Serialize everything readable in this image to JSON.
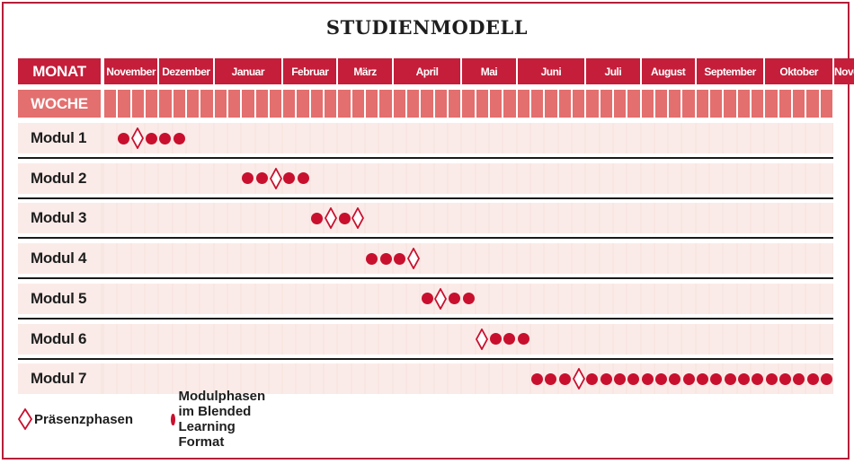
{
  "title": "STUDIENMODELL",
  "header": {
    "month_label": "MONAT",
    "week_label": "WOCHE",
    "months": [
      "November",
      "Dezember",
      "Januar",
      "Februar",
      "März",
      "April",
      "Mai",
      "Juni",
      "Juli",
      "August",
      "September",
      "Oktober",
      "November"
    ]
  },
  "colors": {
    "accent": "#c41e3a",
    "week_row": "#e36f6f",
    "cell": "#fbebe8",
    "dot": "#c8102e",
    "diamond_stroke": "#c8102e"
  },
  "modules": [
    {
      "label": "Modul 1",
      "marks": [
        {
          "week": 2,
          "type": "dot"
        },
        {
          "week": 3,
          "type": "diamond"
        },
        {
          "week": 4,
          "type": "dot"
        },
        {
          "week": 5,
          "type": "dot"
        },
        {
          "week": 6,
          "type": "dot"
        }
      ]
    },
    {
      "label": "Modul 2",
      "marks": [
        {
          "week": 11,
          "type": "dot"
        },
        {
          "week": 12,
          "type": "dot"
        },
        {
          "week": 13,
          "type": "diamond"
        },
        {
          "week": 14,
          "type": "dot"
        },
        {
          "week": 15,
          "type": "dot"
        }
      ]
    },
    {
      "label": "Modul 3",
      "marks": [
        {
          "week": 16,
          "type": "dot"
        },
        {
          "week": 17,
          "type": "diamond"
        },
        {
          "week": 18,
          "type": "dot"
        },
        {
          "week": 19,
          "type": "diamond"
        }
      ]
    },
    {
      "label": "Modul 4",
      "marks": [
        {
          "week": 20,
          "type": "dot"
        },
        {
          "week": 21,
          "type": "dot"
        },
        {
          "week": 22,
          "type": "dot"
        },
        {
          "week": 23,
          "type": "diamond"
        }
      ]
    },
    {
      "label": "Modul 5",
      "marks": [
        {
          "week": 24,
          "type": "dot"
        },
        {
          "week": 25,
          "type": "diamond"
        },
        {
          "week": 26,
          "type": "dot"
        },
        {
          "week": 27,
          "type": "dot"
        }
      ]
    },
    {
      "label": "Modul 6",
      "marks": [
        {
          "week": 28,
          "type": "diamond"
        },
        {
          "week": 29,
          "type": "dot"
        },
        {
          "week": 30,
          "type": "dot"
        },
        {
          "week": 31,
          "type": "dot"
        }
      ]
    },
    {
      "label": "Modul 7",
      "marks": [
        {
          "week": 32,
          "type": "dot"
        },
        {
          "week": 33,
          "type": "dot"
        },
        {
          "week": 34,
          "type": "dot"
        },
        {
          "week": 35,
          "type": "diamond"
        },
        {
          "week": 36,
          "type": "dot"
        },
        {
          "week": 37,
          "type": "dot"
        },
        {
          "week": 38,
          "type": "dot"
        },
        {
          "week": 39,
          "type": "dot"
        },
        {
          "week": 40,
          "type": "dot"
        },
        {
          "week": 41,
          "type": "dot"
        },
        {
          "week": 42,
          "type": "dot"
        },
        {
          "week": 43,
          "type": "dot"
        },
        {
          "week": 44,
          "type": "dot"
        },
        {
          "week": 45,
          "type": "dot"
        },
        {
          "week": 46,
          "type": "dot"
        },
        {
          "week": 47,
          "type": "dot"
        },
        {
          "week": 48,
          "type": "dot"
        },
        {
          "week": 49,
          "type": "dot"
        },
        {
          "week": 50,
          "type": "dot"
        },
        {
          "week": 51,
          "type": "dot"
        },
        {
          "week": 52,
          "type": "dot"
        },
        {
          "week": 53,
          "type": "dot"
        }
      ]
    }
  ],
  "legend": {
    "presence_label": "Präsenzphasen",
    "module_label": "Modulphasen im Blended Learning Format",
    "presence_icon": "diamond-outline",
    "module_icon": "filled-circle"
  }
}
